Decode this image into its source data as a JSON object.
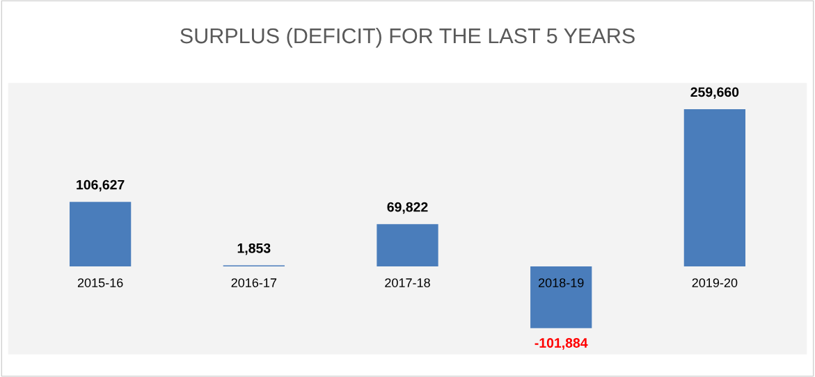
{
  "chart_data": {
    "type": "bar",
    "title": "SURPLUS (DEFICIT) FOR THE LAST 5 YEARS",
    "categories": [
      "2015-16",
      "2016-17",
      "2017-18",
      "2018-19",
      "2019-20"
    ],
    "values": [
      106627,
      1853,
      69822,
      -101884,
      259660
    ],
    "color": "#4a7dbb",
    "value_labels": [
      "106,627",
      "1,853",
      "69,822",
      "-101,884",
      "259,660"
    ],
    "grid": false,
    "legend": false
  }
}
